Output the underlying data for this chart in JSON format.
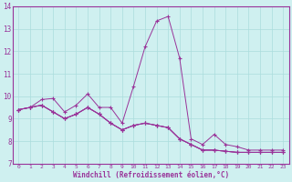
{
  "xlabel": "Windchill (Refroidissement éolien,°C)",
  "xlim": [
    -0.5,
    23.5
  ],
  "ylim": [
    7,
    14
  ],
  "xticks": [
    0,
    1,
    2,
    3,
    4,
    5,
    6,
    7,
    8,
    9,
    10,
    11,
    12,
    13,
    14,
    15,
    16,
    17,
    18,
    19,
    20,
    21,
    22,
    23
  ],
  "yticks": [
    7,
    8,
    9,
    10,
    11,
    12,
    13,
    14
  ],
  "background_color": "#cff0f0",
  "line_color": "#993399",
  "grid_color": "#aadddd",
  "series": [
    [
      9.4,
      9.5,
      9.85,
      9.9,
      9.3,
      9.6,
      10.1,
      9.5,
      9.5,
      8.8,
      10.45,
      12.2,
      13.35,
      13.55,
      11.7,
      8.1,
      7.85,
      8.3,
      7.85,
      7.75,
      7.6,
      7.6,
      7.6,
      7.6
    ],
    [
      9.4,
      9.5,
      9.6,
      9.3,
      9.0,
      9.2,
      9.5,
      9.2,
      8.8,
      8.5,
      8.7,
      8.8,
      8.7,
      8.6,
      8.1,
      7.85,
      7.6,
      7.6,
      7.55,
      7.5,
      7.5,
      7.5,
      7.5,
      7.5
    ],
    [
      9.4,
      9.5,
      9.6,
      9.3,
      9.0,
      9.2,
      9.5,
      9.2,
      8.8,
      8.5,
      8.7,
      8.8,
      8.7,
      8.6,
      8.1,
      7.85,
      7.6,
      7.6,
      7.55,
      7.5,
      7.5,
      7.5,
      7.5,
      7.5
    ],
    [
      9.4,
      9.5,
      9.6,
      9.3,
      9.0,
      9.2,
      9.5,
      9.2,
      8.8,
      8.5,
      8.7,
      8.8,
      8.7,
      8.6,
      8.1,
      7.85,
      7.6,
      7.6,
      7.55,
      7.5,
      7.5,
      7.5,
      7.5,
      7.5
    ]
  ]
}
